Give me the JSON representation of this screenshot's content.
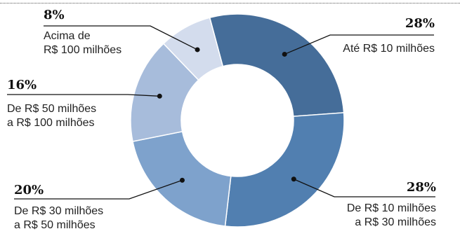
{
  "chart_data": {
    "type": "pie",
    "title": "",
    "categories": [
      "Até R$ 10 milhões",
      "De R$ 10 milhões a R$ 30 milhões",
      "De R$ 30 milhões a R$ 50 milhões",
      "De R$ 50 milhões a R$ 100 milhões",
      "Acima de R$ 100 milhões"
    ],
    "values": [
      28,
      28,
      20,
      16,
      8
    ],
    "unit": "%",
    "colors": [
      "#456d99",
      "#517fb0",
      "#7ea2cc",
      "#a7bcdb",
      "#d3dced"
    ],
    "labels": [
      {
        "pct": "28%",
        "line1": "Até R$ 10 milhões",
        "line2": ""
      },
      {
        "pct": "28%",
        "line1": "De R$ 10 milhões",
        "line2": "a R$ 30 milhões"
      },
      {
        "pct": "20%",
        "line1": "De R$ 30 milhões",
        "line2": "a R$ 50 milhões"
      },
      {
        "pct": "16%",
        "line1": "De R$ 50 milhões",
        "line2": "a R$ 100 milhões"
      },
      {
        "pct": "8%",
        "line1": "Acima de",
        "line2": "R$ 100 milhões"
      }
    ]
  }
}
